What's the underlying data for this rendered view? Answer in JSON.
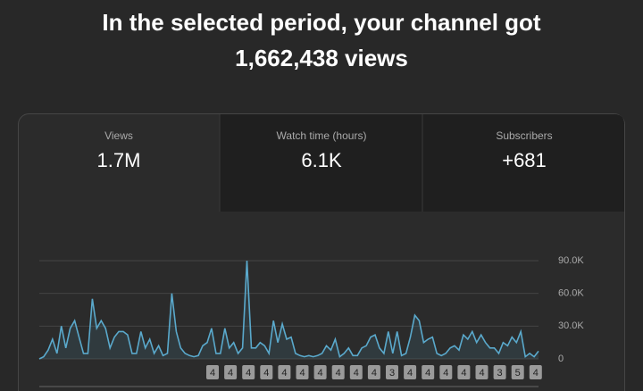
{
  "header": {
    "title": "In the selected period, your channel got",
    "views": "1,662,438 views"
  },
  "metrics": [
    {
      "label": "Views",
      "value": "1.7M"
    },
    {
      "label": "Watch time (hours)",
      "value": "6.1K"
    },
    {
      "label": "Subscribers",
      "value": "+681"
    }
  ],
  "chart_data": {
    "type": "line",
    "color": "#5aa9cc",
    "values": [
      0,
      2000,
      8000,
      18000,
      5000,
      30000,
      10000,
      28000,
      35000,
      20000,
      5000,
      5000,
      55000,
      28000,
      35000,
      28000,
      10000,
      20000,
      25000,
      25000,
      22000,
      5000,
      5000,
      25000,
      10000,
      18000,
      5000,
      12000,
      3000,
      5000,
      60000,
      25000,
      10000,
      5000,
      3000,
      2000,
      3000,
      12000,
      15000,
      28000,
      5000,
      5000,
      28000,
      10000,
      15000,
      5000,
      10000,
      90000,
      10000,
      10000,
      15000,
      12000,
      5000,
      35000,
      15000,
      32000,
      18000,
      20000,
      5000,
      3000,
      2000,
      3000,
      2000,
      3000,
      5000,
      12000,
      8000,
      18000,
      2000,
      5000,
      10000,
      3000,
      3000,
      10000,
      12000,
      20000,
      22000,
      10000,
      5000,
      25000,
      5000,
      25000,
      3000,
      5000,
      20000,
      40000,
      35000,
      15000,
      18000,
      20000,
      5000,
      3000,
      5000,
      10000,
      12000,
      8000,
      22000,
      18000,
      25000,
      15000,
      22000,
      15000,
      10000,
      10000,
      5000,
      15000,
      12000,
      20000,
      15000,
      25000,
      2000,
      5000,
      2000,
      7000
    ],
    "ylim": [
      0,
      90000
    ],
    "yticks": [
      0,
      {
        "value": 30000,
        "label": "30.0K"
      },
      {
        "value": 60000,
        "label": "60.0K"
      },
      {
        "value": 90000,
        "label": "90.0K"
      }
    ],
    "grid": true,
    "annotations": [
      "4",
      "4",
      "4",
      "4",
      "4",
      "4",
      "4",
      "4",
      "4",
      "4",
      "3",
      "4",
      "4",
      "4",
      "4",
      "4",
      "3",
      "5",
      "4"
    ]
  }
}
